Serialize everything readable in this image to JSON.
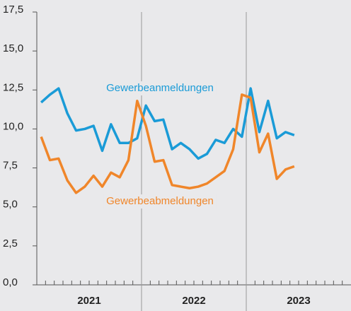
{
  "chart_data": {
    "type": "line",
    "categories": [
      null,
      null,
      null,
      null,
      null,
      null,
      null,
      null,
      null,
      null,
      null,
      null,
      null,
      null,
      null,
      null,
      null,
      null,
      null,
      null,
      null,
      null,
      null,
      null,
      null,
      null,
      null,
      null,
      null,
      null,
      null,
      null,
      null,
      null,
      null,
      null
    ],
    "x_groups": [
      "2021",
      "2022",
      "2023"
    ],
    "series": [
      {
        "name": "Gewerbeanmeldungen",
        "color": "#1a9bd7",
        "values": [
          11.7,
          12.2,
          12.6,
          11.0,
          9.9,
          10.0,
          10.2,
          8.6,
          10.3,
          9.1,
          9.1,
          9.4,
          11.5,
          10.5,
          10.6,
          8.7,
          9.1,
          8.7,
          8.1,
          8.4,
          9.3,
          9.1,
          10.0,
          9.5,
          12.6,
          9.8,
          11.8,
          9.4,
          9.8,
          9.6,
          null,
          null,
          null,
          null,
          null,
          null
        ]
      },
      {
        "name": "Gewerbeabmeldungen",
        "color": "#f0862a",
        "values": [
          9.5,
          8.0,
          8.1,
          6.7,
          5.9,
          6.3,
          7.0,
          6.3,
          7.2,
          6.9,
          8.0,
          11.8,
          10.2,
          7.9,
          8.0,
          6.4,
          6.3,
          6.2,
          6.3,
          6.5,
          6.9,
          7.3,
          8.7,
          12.2,
          12.0,
          8.5,
          9.7,
          6.8,
          7.4,
          7.6,
          null,
          null,
          null,
          null,
          null,
          null
        ]
      }
    ],
    "ylim": [
      0,
      17.5
    ],
    "yticks": [
      {
        "value": 0,
        "label": "0,0"
      },
      {
        "value": 2.5,
        "label": "2,5"
      },
      {
        "value": 5,
        "label": "5,0"
      },
      {
        "value": 7.5,
        "label": "7,5"
      },
      {
        "value": 10,
        "label": "10,0"
      },
      {
        "value": 12.5,
        "label": "12,5"
      },
      {
        "value": 15,
        "label": "15,0"
      },
      {
        "value": 17.5,
        "label": "17,5"
      }
    ],
    "grid": false
  }
}
